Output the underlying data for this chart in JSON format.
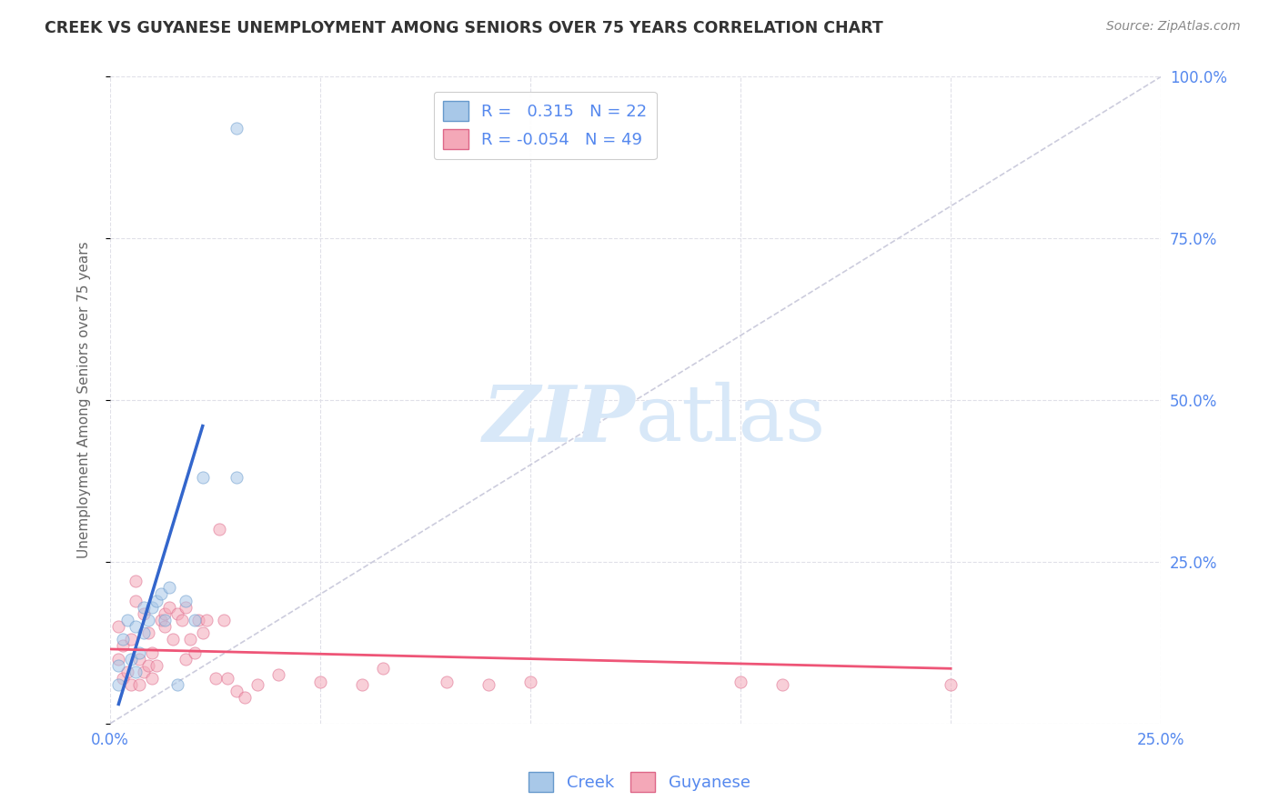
{
  "title": "CREEK VS GUYANESE UNEMPLOYMENT AMONG SENIORS OVER 75 YEARS CORRELATION CHART",
  "source": "Source: ZipAtlas.com",
  "ylabel": "Unemployment Among Seniors over 75 years",
  "xlim": [
    0.0,
    0.25
  ],
  "ylim": [
    0.0,
    1.0
  ],
  "xticks": [
    0.0,
    0.05,
    0.1,
    0.15,
    0.2,
    0.25
  ],
  "xticklabels": [
    "0.0%",
    "",
    "",
    "",
    "",
    "25.0%"
  ],
  "yticks": [
    0.0,
    0.25,
    0.5,
    0.75,
    1.0
  ],
  "yticklabels": [
    "",
    "25.0%",
    "50.0%",
    "75.0%",
    "100.0%"
  ],
  "creek_color": "#A8C8E8",
  "guyanese_color": "#F4A8B8",
  "creek_edge_color": "#6699CC",
  "guyanese_edge_color": "#DD6688",
  "creek_line_color": "#3366CC",
  "guyanese_line_color": "#EE5577",
  "diagonal_color": "#CCCCDD",
  "background_color": "#FFFFFF",
  "grid_color": "#E0E0E8",
  "creek_R": 0.315,
  "creek_N": 22,
  "guyanese_R": -0.054,
  "guyanese_N": 49,
  "title_color": "#333333",
  "axis_label_color": "#666666",
  "tick_label_color": "#5588EE",
  "watermark_color": "#D8E8F8",
  "creek_x": [
    0.002,
    0.002,
    0.003,
    0.004,
    0.005,
    0.006,
    0.006,
    0.007,
    0.008,
    0.008,
    0.009,
    0.01,
    0.011,
    0.012,
    0.013,
    0.014,
    0.016,
    0.018,
    0.02,
    0.022,
    0.03,
    0.03
  ],
  "creek_y": [
    0.06,
    0.09,
    0.13,
    0.16,
    0.1,
    0.08,
    0.15,
    0.11,
    0.18,
    0.14,
    0.16,
    0.18,
    0.19,
    0.2,
    0.16,
    0.21,
    0.06,
    0.19,
    0.16,
    0.38,
    0.38,
    0.92
  ],
  "guyanese_x": [
    0.002,
    0.002,
    0.003,
    0.003,
    0.004,
    0.005,
    0.005,
    0.006,
    0.006,
    0.007,
    0.007,
    0.008,
    0.008,
    0.009,
    0.009,
    0.01,
    0.01,
    0.011,
    0.012,
    0.013,
    0.013,
    0.014,
    0.015,
    0.016,
    0.017,
    0.018,
    0.018,
    0.019,
    0.02,
    0.021,
    0.022,
    0.023,
    0.025,
    0.026,
    0.027,
    0.028,
    0.03,
    0.032,
    0.035,
    0.04,
    0.05,
    0.06,
    0.065,
    0.08,
    0.09,
    0.1,
    0.15,
    0.16,
    0.2
  ],
  "guyanese_y": [
    0.1,
    0.15,
    0.07,
    0.12,
    0.08,
    0.06,
    0.13,
    0.19,
    0.22,
    0.06,
    0.1,
    0.08,
    0.17,
    0.09,
    0.14,
    0.07,
    0.11,
    0.09,
    0.16,
    0.15,
    0.17,
    0.18,
    0.13,
    0.17,
    0.16,
    0.18,
    0.1,
    0.13,
    0.11,
    0.16,
    0.14,
    0.16,
    0.07,
    0.3,
    0.16,
    0.07,
    0.05,
    0.04,
    0.06,
    0.075,
    0.065,
    0.06,
    0.085,
    0.065,
    0.06,
    0.065,
    0.065,
    0.06,
    0.06
  ],
  "marker_size": 90,
  "marker_alpha": 0.55,
  "creek_line_x": [
    0.002,
    0.022
  ],
  "creek_line_y": [
    0.03,
    0.46
  ],
  "guyanese_line_x": [
    0.0,
    0.2
  ],
  "guyanese_line_y": [
    0.115,
    0.085
  ]
}
